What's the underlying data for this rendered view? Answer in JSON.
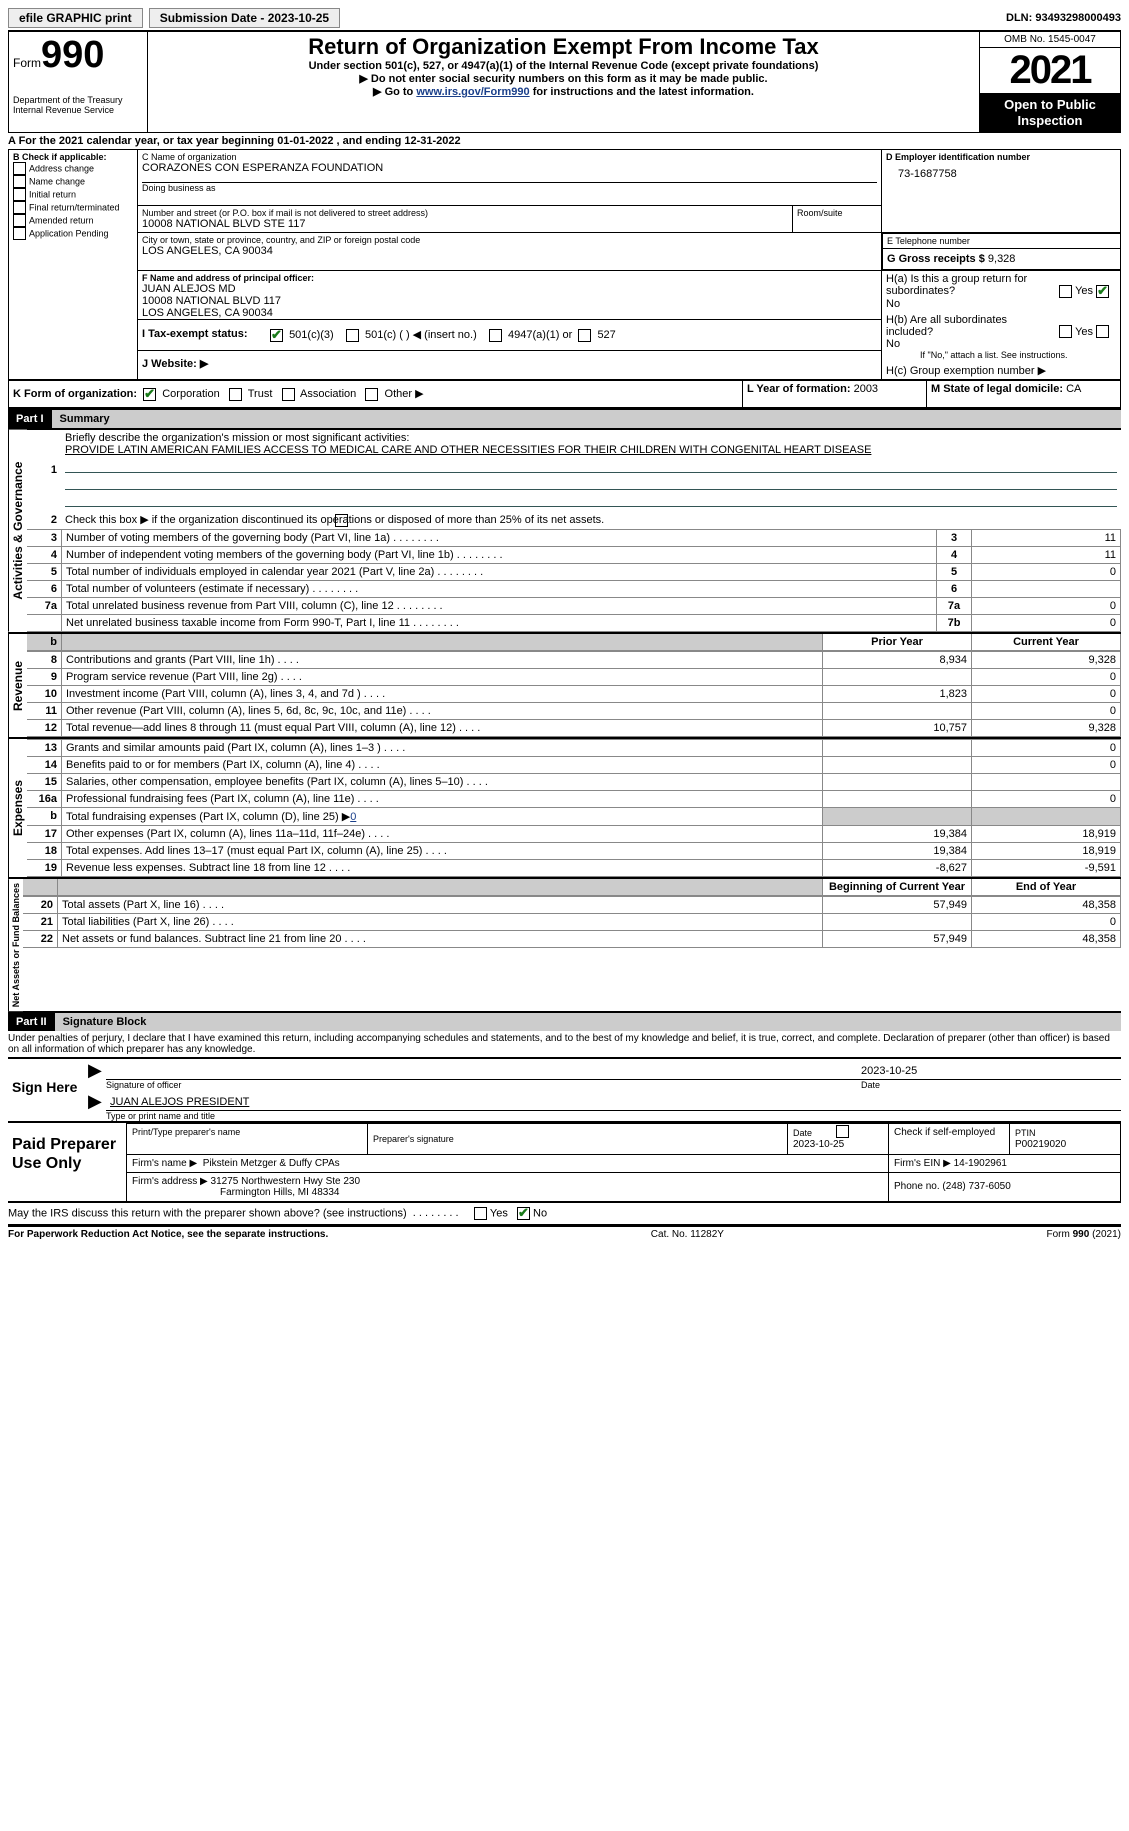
{
  "topbar": {
    "efile": "efile GRAPHIC print",
    "submission_label": "Submission Date - 2023-10-25",
    "dln": "DLN: 93493298000493"
  },
  "header": {
    "form_word": "Form",
    "form_num": "990",
    "dept": "Department of the Treasury",
    "irs": "Internal Revenue Service",
    "title": "Return of Organization Exempt From Income Tax",
    "subtitle": "Under section 501(c), 527, or 4947(a)(1) of the Internal Revenue Code (except private foundations)",
    "instr1": "▶ Do not enter social security numbers on this form as it may be made public.",
    "instr2_pre": "▶ Go to ",
    "instr2_link": "www.irs.gov/Form990",
    "instr2_post": " for instructions and the latest information.",
    "omb": "OMB No. 1545-0047",
    "year": "2021",
    "open": "Open to Public Inspection"
  },
  "A": {
    "text": "A For the 2021 calendar year, or tax year beginning 01-01-2022    , and ending 12-31-2022"
  },
  "B": {
    "label": "B Check if applicable:",
    "opts": [
      "Address change",
      "Name change",
      "Initial return",
      "Final return/terminated",
      "Amended return",
      "Application Pending"
    ]
  },
  "C": {
    "name_label": "C Name of organization",
    "name": "CORAZONES CON ESPERANZA FOUNDATION",
    "dba_label": "Doing business as",
    "addr_label": "Number and street (or P.O. box if mail is not delivered to street address)",
    "room_label": "Room/suite",
    "addr": "10008 NATIONAL BLVD STE 117",
    "city_label": "City or town, state or province, country, and ZIP or foreign postal code",
    "city": "LOS ANGELES, CA   90034"
  },
  "D": {
    "label": "D Employer identification number",
    "value": "73-1687758"
  },
  "E": {
    "label": "E Telephone number",
    "value": ""
  },
  "G": {
    "label": "G Gross receipts $",
    "value": "9,328"
  },
  "F": {
    "label": "F  Name and address of principal officer:",
    "name": "JUAN ALEJOS MD",
    "addr1": "10008 NATIONAL BLVD 117",
    "addr2": "LOS ANGELES, CA   90034"
  },
  "H": {
    "a": "H(a)  Is this a group return for subordinates?",
    "b": "H(b)  Are all subordinates included?",
    "b_note": "If \"No,\" attach a list. See instructions.",
    "c": "H(c)  Group exemption number ▶",
    "yes": "Yes",
    "no": "No"
  },
  "I": {
    "label": "I   Tax-exempt status:",
    "opt1": "501(c)(3)",
    "opt2": "501(c) (    ) ◀ (insert no.)",
    "opt3": "4947(a)(1) or",
    "opt4": "527"
  },
  "J": {
    "label": "J    Website: ▶"
  },
  "K": {
    "label": "K Form of organization:",
    "opts": [
      "Corporation",
      "Trust",
      "Association",
      "Other ▶"
    ]
  },
  "L": {
    "label": "L Year of formation:",
    "value": "2003"
  },
  "M": {
    "label": "M State of legal domicile:",
    "value": "CA"
  },
  "part1": {
    "header": "Part I",
    "title": "Summary",
    "line1_label": "Briefly describe the organization's mission or most significant activities:",
    "mission": "PROVIDE LATIN AMERICAN FAMILIES ACCESS TO MEDICAL CARE AND OTHER NECESSITIES FOR THEIR CHILDREN WITH CONGENITAL HEART DISEASE",
    "line2": "Check this box ▶        if the organization discontinued its operations or disposed of more than 25% of its net assets.",
    "vert1": "Activities & Governance",
    "vert2": "Revenue",
    "vert3": "Expenses",
    "vert4": "Net Assets or Fund Balances",
    "rows_gov": [
      {
        "n": "3",
        "t": "Number of voting members of the governing body (Part VI, line 1a)",
        "b": "3",
        "v": "11"
      },
      {
        "n": "4",
        "t": "Number of independent voting members of the governing body (Part VI, line 1b)",
        "b": "4",
        "v": "11"
      },
      {
        "n": "5",
        "t": "Total number of individuals employed in calendar year 2021 (Part V, line 2a)",
        "b": "5",
        "v": "0"
      },
      {
        "n": "6",
        "t": "Total number of volunteers (estimate if necessary)",
        "b": "6",
        "v": ""
      },
      {
        "n": "7a",
        "t": "Total unrelated business revenue from Part VIII, column (C), line 12",
        "b": "7a",
        "v": "0"
      },
      {
        "n": "",
        "t": "Net unrelated business taxable income from Form 990-T, Part I, line 11",
        "b": "7b",
        "v": "0"
      }
    ],
    "colhdr_prior": "Prior Year",
    "colhdr_curr": "Current Year",
    "rows_rev": [
      {
        "n": "8",
        "t": "Contributions and grants (Part VIII, line 1h)",
        "p": "8,934",
        "c": "9,328"
      },
      {
        "n": "9",
        "t": "Program service revenue (Part VIII, line 2g)",
        "p": "",
        "c": "0"
      },
      {
        "n": "10",
        "t": "Investment income (Part VIII, column (A), lines 3, 4, and 7d )",
        "p": "1,823",
        "c": "0"
      },
      {
        "n": "11",
        "t": "Other revenue (Part VIII, column (A), lines 5, 6d, 8c, 9c, 10c, and 11e)",
        "p": "",
        "c": "0"
      },
      {
        "n": "12",
        "t": "Total revenue—add lines 8 through 11 (must equal Part VIII, column (A), line 12)",
        "p": "10,757",
        "c": "9,328"
      }
    ],
    "rows_exp": [
      {
        "n": "13",
        "t": "Grants and similar amounts paid (Part IX, column (A), lines 1–3 )",
        "p": "",
        "c": "0"
      },
      {
        "n": "14",
        "t": "Benefits paid to or for members (Part IX, column (A), line 4)",
        "p": "",
        "c": "0"
      },
      {
        "n": "15",
        "t": "Salaries, other compensation, employee benefits (Part IX, column (A), lines 5–10)",
        "p": "",
        "c": ""
      },
      {
        "n": "16a",
        "t": "Professional fundraising fees (Part IX, column (A), line 11e)",
        "p": "",
        "c": "0"
      },
      {
        "n": "b",
        "t": "Total fundraising expenses (Part IX, column (D), line 25) ▶",
        "link": "0",
        "shade": true
      },
      {
        "n": "17",
        "t": "Other expenses (Part IX, column (A), lines 11a–11d, 11f–24e)",
        "p": "19,384",
        "c": "18,919"
      },
      {
        "n": "18",
        "t": "Total expenses. Add lines 13–17 (must equal Part IX, column (A), line 25)",
        "p": "19,384",
        "c": "18,919"
      },
      {
        "n": "19",
        "t": "Revenue less expenses. Subtract line 18 from line 12",
        "p": "-8,627",
        "c": "-9,591"
      }
    ],
    "colhdr_begin": "Beginning of Current Year",
    "colhdr_end": "End of Year",
    "rows_net": [
      {
        "n": "20",
        "t": "Total assets (Part X, line 16)",
        "p": "57,949",
        "c": "48,358"
      },
      {
        "n": "21",
        "t": "Total liabilities (Part X, line 26)",
        "p": "",
        "c": "0"
      },
      {
        "n": "22",
        "t": "Net assets or fund balances. Subtract line 21 from line 20",
        "p": "57,949",
        "c": "48,358"
      }
    ]
  },
  "part2": {
    "header": "Part II",
    "title": "Signature Block",
    "decl": "Under penalties of perjury, I declare that I have examined this return, including accompanying schedules and statements, and to the best of my knowledge and belief, it is true, correct, and complete. Declaration of preparer (other than officer) is based on all information of which preparer has any knowledge.",
    "sign_here": "Sign Here",
    "sig_officer": "Signature of officer",
    "sig_date": "2023-10-25",
    "date_label": "Date",
    "name_title": "JUAN ALEJOS PRESIDENT",
    "type_label": "Type or print name and title",
    "paid": "Paid Preparer Use Only",
    "prep_name_label": "Print/Type preparer's name",
    "prep_sig_label": "Preparer's signature",
    "prep_date": "2023-10-25",
    "check_self": "Check          if self-employed",
    "ptin_label": "PTIN",
    "ptin": "P00219020",
    "firm_name_label": "Firm's name      ▶",
    "firm_name": "Pikstein Metzger & Duffy CPAs",
    "firm_ein_label": "Firm's EIN ▶",
    "firm_ein": "14-1902961",
    "firm_addr_label": "Firm's address ▶",
    "firm_addr1": "31275 Northwestern Hwy Ste 230",
    "firm_addr2": "Farmington Hills, MI   48334",
    "phone_label": "Phone no.",
    "phone": "(248) 737-6050",
    "discuss": "May the IRS discuss this return with the preparer shown above? (see instructions)"
  },
  "footer": {
    "left": "For Paperwork Reduction Act Notice, see the separate instructions.",
    "mid": "Cat. No. 11282Y",
    "right": "Form 990 (2021)"
  }
}
